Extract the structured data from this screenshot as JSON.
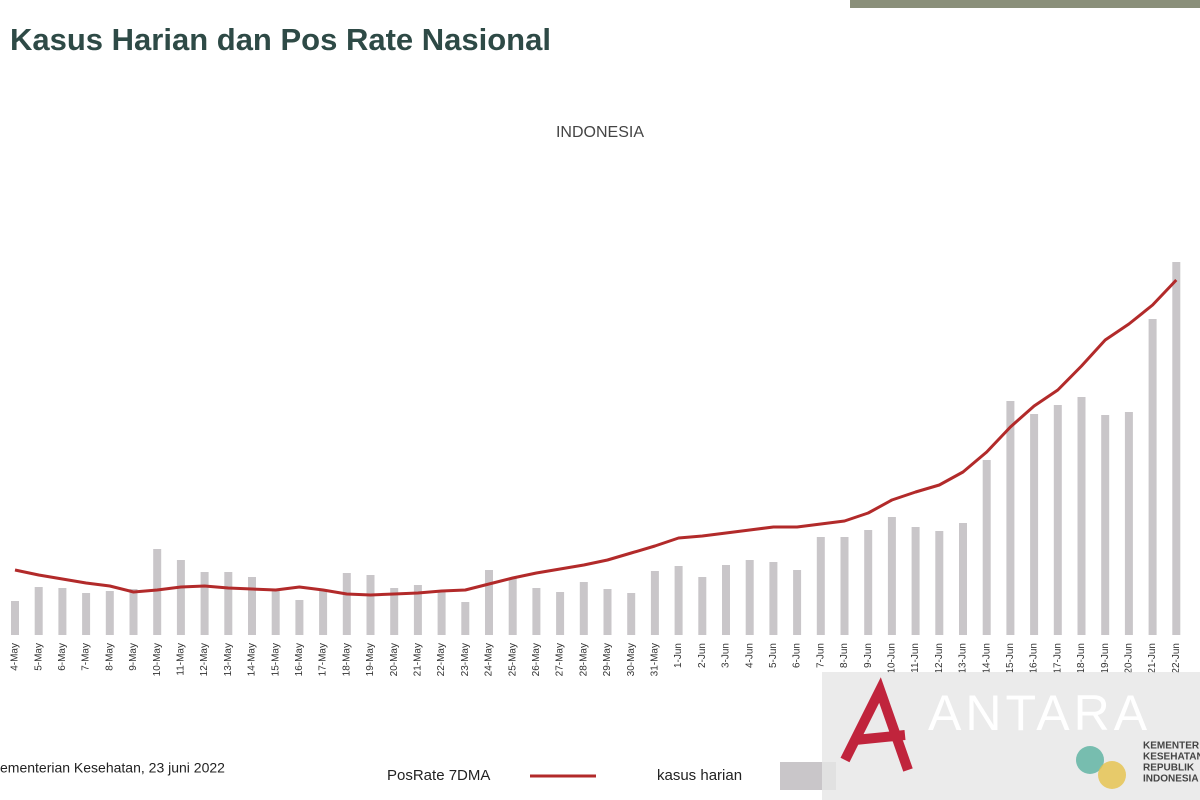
{
  "chart_data": {
    "type": "bar-line",
    "title": "Kasus Harian dan Pos Rate Nasional",
    "subtitle": "INDONESIA",
    "source": "ementerian Kesehatan, 23 juni 2022",
    "watermark": "ANTARA",
    "logo_text": [
      "KEMENTER",
      "KESEHATAN",
      "REPUBLIK",
      "INDONESIA"
    ],
    "categories": [
      "4-May",
      "5-May",
      "6-May",
      "7-May",
      "8-May",
      "9-May",
      "10-May",
      "11-May",
      "12-May",
      "13-May",
      "14-May",
      "15-May",
      "16-May",
      "17-May",
      "18-May",
      "19-May",
      "20-May",
      "21-May",
      "22-May",
      "23-May",
      "24-May",
      "25-May",
      "26-May",
      "27-May",
      "28-May",
      "29-May",
      "30-May",
      "31-May",
      "1-Jun",
      "2-Jun",
      "3-Jun",
      "4-Jun",
      "5-Jun",
      "6-Jun",
      "7-Jun",
      "8-Jun",
      "9-Jun",
      "10-Jun",
      "11-Jun",
      "12-Jun",
      "13-Jun",
      "14-Jun",
      "15-Jun",
      "16-Jun",
      "17-Jun",
      "18-Jun",
      "19-Jun",
      "20-Jun",
      "21-Jun",
      "22-Jun"
    ],
    "series": [
      {
        "name": "kasus harian",
        "type": "bar",
        "color": "#c9c6c9",
        "values": [
          34,
          48,
          47,
          42,
          44,
          46,
          86,
          75,
          63,
          63,
          58,
          46,
          35,
          45,
          62,
          60,
          47,
          50,
          44,
          33,
          65,
          57,
          47,
          43,
          53,
          46,
          42,
          64,
          69,
          58,
          70,
          75,
          73,
          65,
          98,
          98,
          105,
          118,
          108,
          104,
          112,
          175,
          234,
          221,
          230,
          238,
          220,
          223,
          316,
          373
        ]
      },
      {
        "name": "PosRate 7DMA",
        "type": "line",
        "color": "#b22a2a",
        "values": [
          65,
          60,
          56,
          52,
          49,
          43,
          45,
          48,
          49,
          47,
          46,
          45,
          48,
          45,
          41,
          40,
          41,
          42,
          44,
          45,
          51,
          57,
          62,
          66,
          70,
          75,
          82,
          89,
          97,
          99,
          102,
          105,
          108,
          108,
          111,
          114,
          122,
          135,
          143,
          150,
          163,
          183,
          208,
          229,
          245,
          269,
          295,
          311,
          330,
          355
        ]
      }
    ],
    "ylim": [
      0,
      400
    ]
  }
}
